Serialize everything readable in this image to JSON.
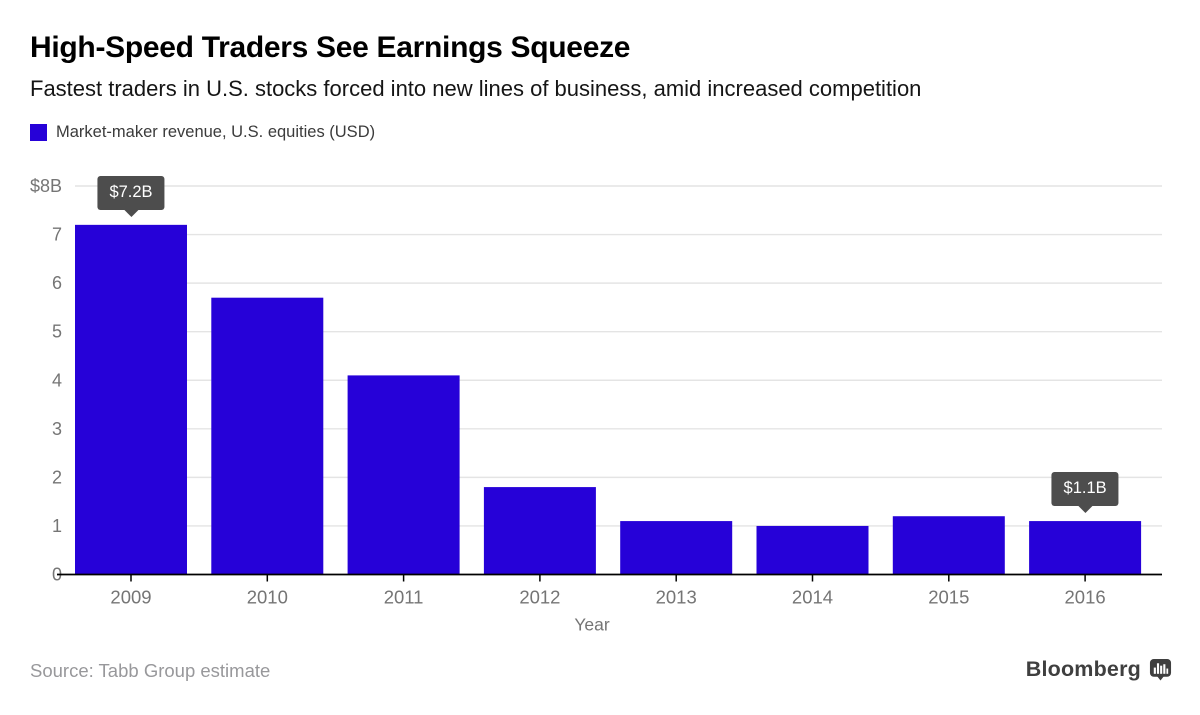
{
  "header": {
    "title": "High-Speed Traders See Earnings Squeeze",
    "subtitle": "Fastest traders in U.S. stocks forced into new lines of business, amid increased competition",
    "legend": {
      "label": "Market-maker revenue, U.S. equities (USD)",
      "swatch_color": "#2601d8"
    }
  },
  "chart_data": {
    "type": "bar",
    "title": "High-Speed Traders See Earnings Squeeze",
    "subtitle": "Fastest traders in U.S. stocks forced into new lines of business, amid increased competition",
    "series_name": "Market-maker revenue, U.S. equities (USD)",
    "categories": [
      "2009",
      "2010",
      "2011",
      "2012",
      "2013",
      "2014",
      "2015",
      "2016"
    ],
    "values": [
      7.2,
      5.7,
      4.1,
      1.8,
      1.1,
      1.0,
      1.2,
      1.1
    ],
    "xlabel": "Year",
    "ylabel": "",
    "ylim": [
      0,
      8
    ],
    "ytick_values": [
      0,
      1,
      2,
      3,
      4,
      5,
      6,
      7,
      8
    ],
    "ytick_labels": [
      "0",
      "1",
      "2",
      "3",
      "4",
      "5",
      "6",
      "7",
      "$8B"
    ],
    "grid": true,
    "legend_position": "top-left",
    "bar_color": "#2601d8",
    "annotations": [
      {
        "category": "2009",
        "index": 0,
        "label": "$7.2B"
      },
      {
        "category": "2016",
        "index": 7,
        "label": "$1.1B"
      }
    ],
    "colors": {
      "gridline": "#e4e4e4",
      "axis_label": "#757575",
      "axis_line": "#000000",
      "tooltip_bg": "#4d4d4d",
      "tooltip_text": "#ffffff"
    }
  },
  "footer": {
    "source": "Source: Tabb Group estimate",
    "brand": "Bloomberg"
  }
}
